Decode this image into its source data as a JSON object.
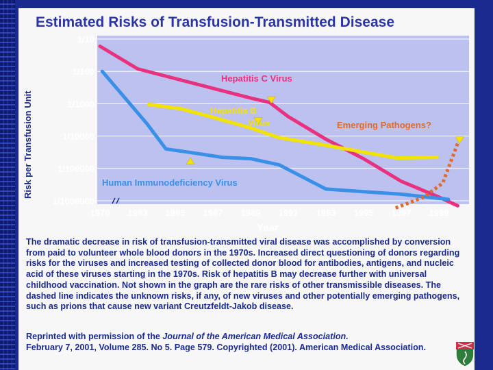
{
  "chart_data": {
    "type": "line",
    "title": "Estimated Risks of Transfusion-Transmitted Disease",
    "ylabel": "Risk per Transfusion Unit",
    "xlabel": "Year",
    "y_scale": "log10",
    "y_tick_labels": [
      "1/10",
      "1/100",
      "1/1000",
      "1/10000",
      "1/100000",
      "1/1000000"
    ],
    "y_tick_values": [
      0.1,
      0.01,
      0.001,
      0.0001,
      1e-05,
      1e-06
    ],
    "x_tick_labels": [
      "1970",
      "1983",
      "1985",
      "1987",
      "1989",
      "1991",
      "1993",
      "1995",
      "1997",
      "1999"
    ],
    "x_axis_break": "between 1970 and 1983",
    "series": [
      {
        "name": "Hepatitis C Virus",
        "color": "#e8317f",
        "style": "solid",
        "x": [
          1970,
          1983,
          1985,
          1987,
          1989,
          1990,
          1991,
          1993,
          1995,
          1997,
          1999,
          2000
        ],
        "y": [
          0.06,
          0.012,
          0.006,
          0.003,
          0.0015,
          0.0011,
          0.0004,
          8e-05,
          2e-05,
          4e-06,
          1.3e-06,
          7e-07
        ]
      },
      {
        "name": "Hepatitis B Virus",
        "color": "#f2e300",
        "style": "solid",
        "x": [
          1983.6,
          1985.3,
          1987,
          1989,
          1990.5,
          1993,
          1995,
          1996.8,
          1998.9
        ],
        "y": [
          0.00095,
          0.0007,
          0.00038,
          0.00018,
          9e-05,
          5.2e-05,
          3.2e-05,
          2.1e-05,
          2.2e-05
        ]
      },
      {
        "name": "Human Immunodeficiency Virus",
        "color": "#3a8fe6",
        "style": "solid",
        "x": [
          1970.8,
          1983.5,
          1984.5,
          1986,
          1987.5,
          1989,
          1990.5,
          1993,
          1995,
          1997,
          1999.5
        ],
        "y": [
          0.01,
          0.00024,
          4e-05,
          3e-05,
          2.2e-05,
          2e-05,
          1.3e-05,
          2.3e-06,
          1.9e-06,
          1.6e-06,
          1.1e-06
        ]
      },
      {
        "name": "Emerging Pathogens?",
        "color": "#e06a2a",
        "style": "dashed",
        "x": [
          1996.7,
          1998.2,
          1999.2,
          2000
        ],
        "y": [
          6e-07,
          1.3e-06,
          3.5e-06,
          6e-05
        ]
      }
    ],
    "annotations": [
      {
        "text": "Hepatitis C Virus",
        "color": "#e8317f",
        "marker": "triangle-down",
        "x": 1990.1,
        "y": 0.0013
      },
      {
        "text": "Hepatitis B",
        "text2": "Virus",
        "color": "#f2e300",
        "marker": "triangle-down",
        "x": 1989.4,
        "y": 0.00029
      },
      {
        "text": "Human Immunodeficiency Virus",
        "color": "#3a8fe6",
        "marker": "triangle-up",
        "x": 1985.8,
        "y": 1.7e-05
      },
      {
        "text": "Emerging Pathogens?",
        "color": "#e06a2a",
        "marker": "triangle-down",
        "x": 2000.1,
        "y": 7.4e-05
      }
    ]
  },
  "caption": "The dramatic decrease in risk of transfusion-transmitted viral disease was accomplished by conversion from paid to volunteer whole blood donors in the 1970s. Increased direct questioning of donors regarding risks for the viruses and increased testing of collected donor blood for antibodies, antigens, and nucleic acid of these viruses starting in the 1970s. Risk of hepatitis B may decrease further with universal childhood vaccination. Not shown in the graph are the rare risks of other transmissible diseases. The dashed line indicates the unknown risks, if any, of new viruses and other potentially emerging pathogens, such as prions that cause new variant Creutzfeldt-Jakob disease.",
  "credit": {
    "prefix": "Reprinted with permission of the ",
    "journal": "Journal of the American Medical Association.",
    "suffix": "February 7, 2001, Volume 285. No 5. Page 579. Copyrighted (2001). American Medical Association."
  },
  "colors": {
    "background": "#1b2a8f",
    "plot_area": "#bcc1ef",
    "axis_text": "#ffffff",
    "title": "#2b35a8"
  }
}
